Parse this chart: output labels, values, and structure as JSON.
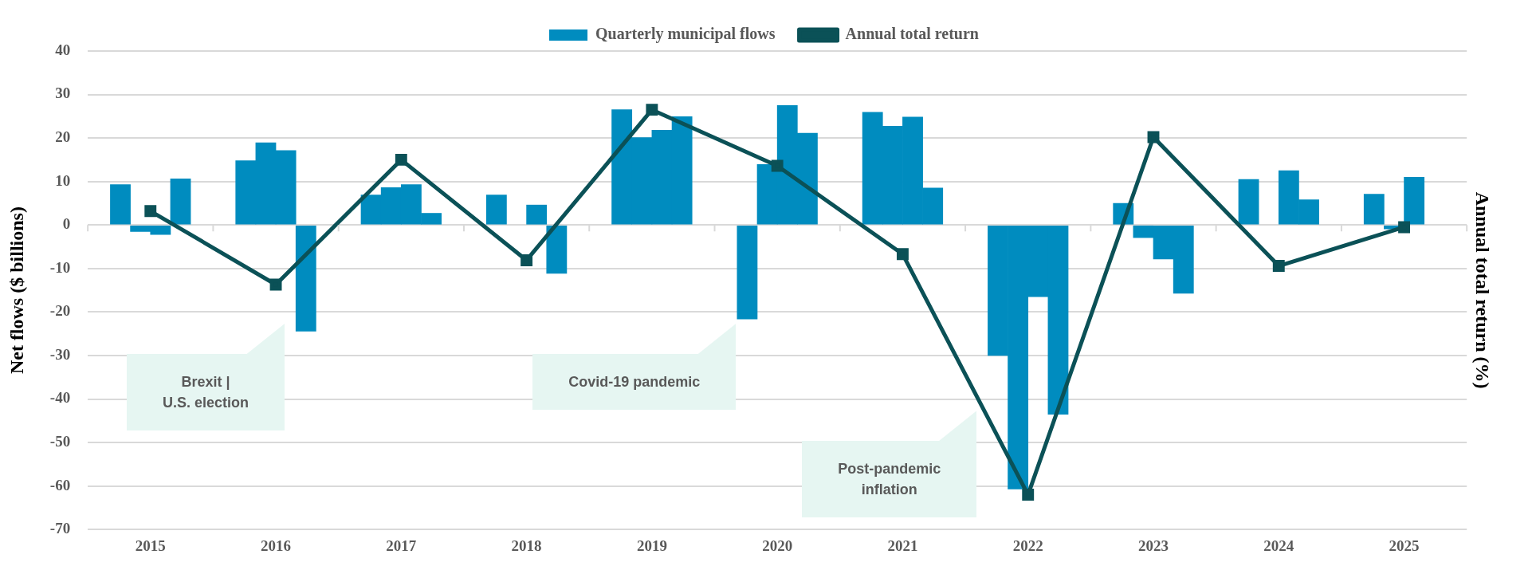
{
  "chart_data": {
    "type": "bar",
    "x": [
      2014.76,
      2014.92,
      2015.08,
      2015.24,
      2015.76,
      2015.92,
      2016.08,
      2016.24,
      2016.76,
      2016.92,
      2017.08,
      2017.24,
      2017.76,
      2017.92,
      2018.08,
      2018.24,
      2018.76,
      2018.92,
      2019.08,
      2019.24,
      2019.76,
      2019.92,
      2020.08,
      2020.24,
      2020.76,
      2020.92,
      2021.08,
      2021.24,
      2021.76,
      2021.92,
      2022.08,
      2022.24,
      2022.76,
      2022.92,
      2023.08,
      2023.24,
      2023.76,
      2023.92,
      2024.08,
      2024.24,
      2024.76,
      2024.92,
      2025.08
    ],
    "series": [
      {
        "name": "Quarterly municipal flows",
        "color": "#008cbf",
        "values": [
          9.3,
          -1.5,
          -2.2,
          10.6,
          14.8,
          18.9,
          17.1,
          -24.4,
          6.9,
          8.6,
          9.3,
          2.7,
          6.9,
          null,
          4.6,
          -11.1,
          26.5,
          20.1,
          21.8,
          24.9,
          -21.6,
          13.9,
          27.5,
          21.1,
          25.9,
          22.7,
          24.8,
          8.5,
          -30.0,
          -60.7,
          -16.5,
          -43.5,
          5.0,
          -2.9,
          -7.8,
          -15.7,
          10.5,
          null,
          12.5,
          5.8,
          7.1,
          -0.9,
          11.0
        ]
      },
      {
        "name": "Annual total return",
        "type": "line",
        "color": "#0b5157",
        "marker": "square",
        "x": [
          2015,
          2016,
          2017,
          2018,
          2019,
          2020,
          2021,
          2022,
          2023,
          2024,
          2025
        ],
        "values": [
          3.2,
          -13.7,
          15.0,
          -8.1,
          26.5,
          13.6,
          -6.7,
          -62.0,
          20.2,
          -9.4,
          -0.5
        ]
      }
    ],
    "ylabel": "Net flows ($ billions)",
    "y2label": "Annual total return (%)",
    "xlim": [
      2014.5,
      2025.5
    ],
    "xticks": [
      {
        "value": 2014.5,
        "label": null
      },
      2015,
      {
        "value": 2015.5,
        "label": null
      },
      2016,
      {
        "value": 2016.5,
        "label": null
      },
      2017,
      {
        "value": 2017.5,
        "label": null
      },
      2018,
      {
        "value": 2018.5,
        "label": null
      },
      2019,
      {
        "value": 2019.5,
        "label": null
      },
      2020,
      {
        "value": 2020.5,
        "label": null
      },
      2021,
      {
        "value": 2021.5,
        "label": null
      },
      2022,
      {
        "value": 2022.5,
        "label": null
      },
      2023,
      {
        "value": 2023.5,
        "label": null
      },
      2024,
      {
        "value": 2024.5,
        "label": null
      },
      2025,
      {
        "value": 2025.5,
        "label": null
      }
    ],
    "ylim": [
      -70,
      40
    ],
    "yticks": [
      -70,
      -60,
      -50,
      -40,
      -30,
      -20,
      -10,
      0,
      10,
      20,
      30,
      40
    ],
    "grid": "y",
    "legend": "top",
    "annotations": [
      "Brexit |\nU.S. election",
      "Covid-19 pandemic",
      "Post-pandemic\ninflation"
    ]
  }
}
